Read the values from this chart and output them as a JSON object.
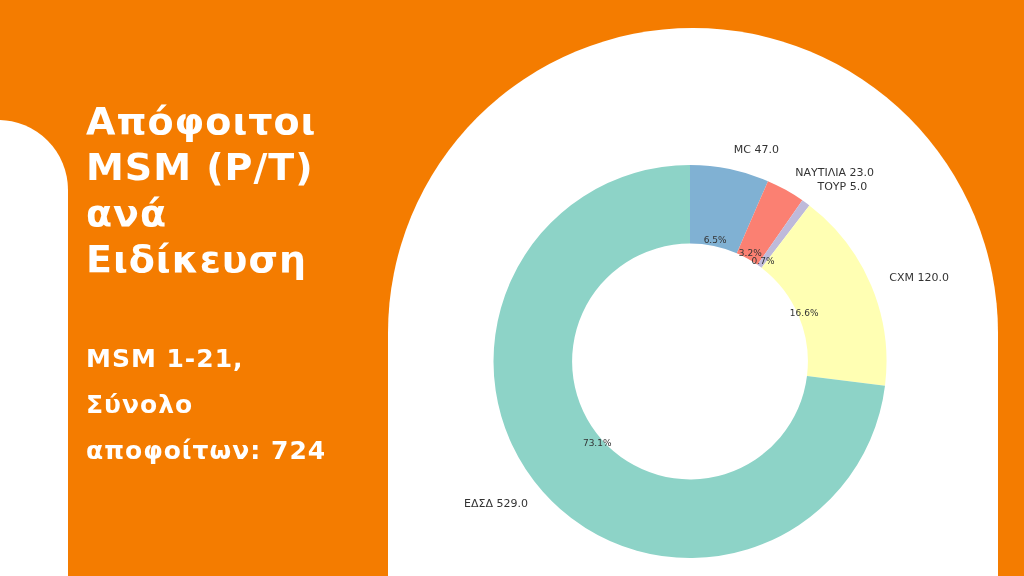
{
  "chart_data": {
    "type": "donut",
    "title": "Απόφοιτοι MSM (P/T) ανά Ειδίκευση",
    "subtitle": "MSM 1-21, Σύνολο αποφοίτων: 724",
    "categories": [
      "MC 47.0",
      "ΝΑΥΤΙΛΙΑ 23.0",
      "ΤΟΥΡ 5.0",
      "CXM 120.0",
      "ΕΔΣΔ 529.0"
    ],
    "values": [
      6.5,
      3.2,
      0.7,
      16.6,
      73.1
    ],
    "colors": [
      "#80b1d3",
      "#fb8072",
      "#bebada",
      "#ffffb3",
      "#8dd3c7"
    ],
    "value_labels": [
      "6.5%",
      "3.2%",
      "0.7%",
      "16.6%",
      "73.1%"
    ],
    "legend": false
  }
}
